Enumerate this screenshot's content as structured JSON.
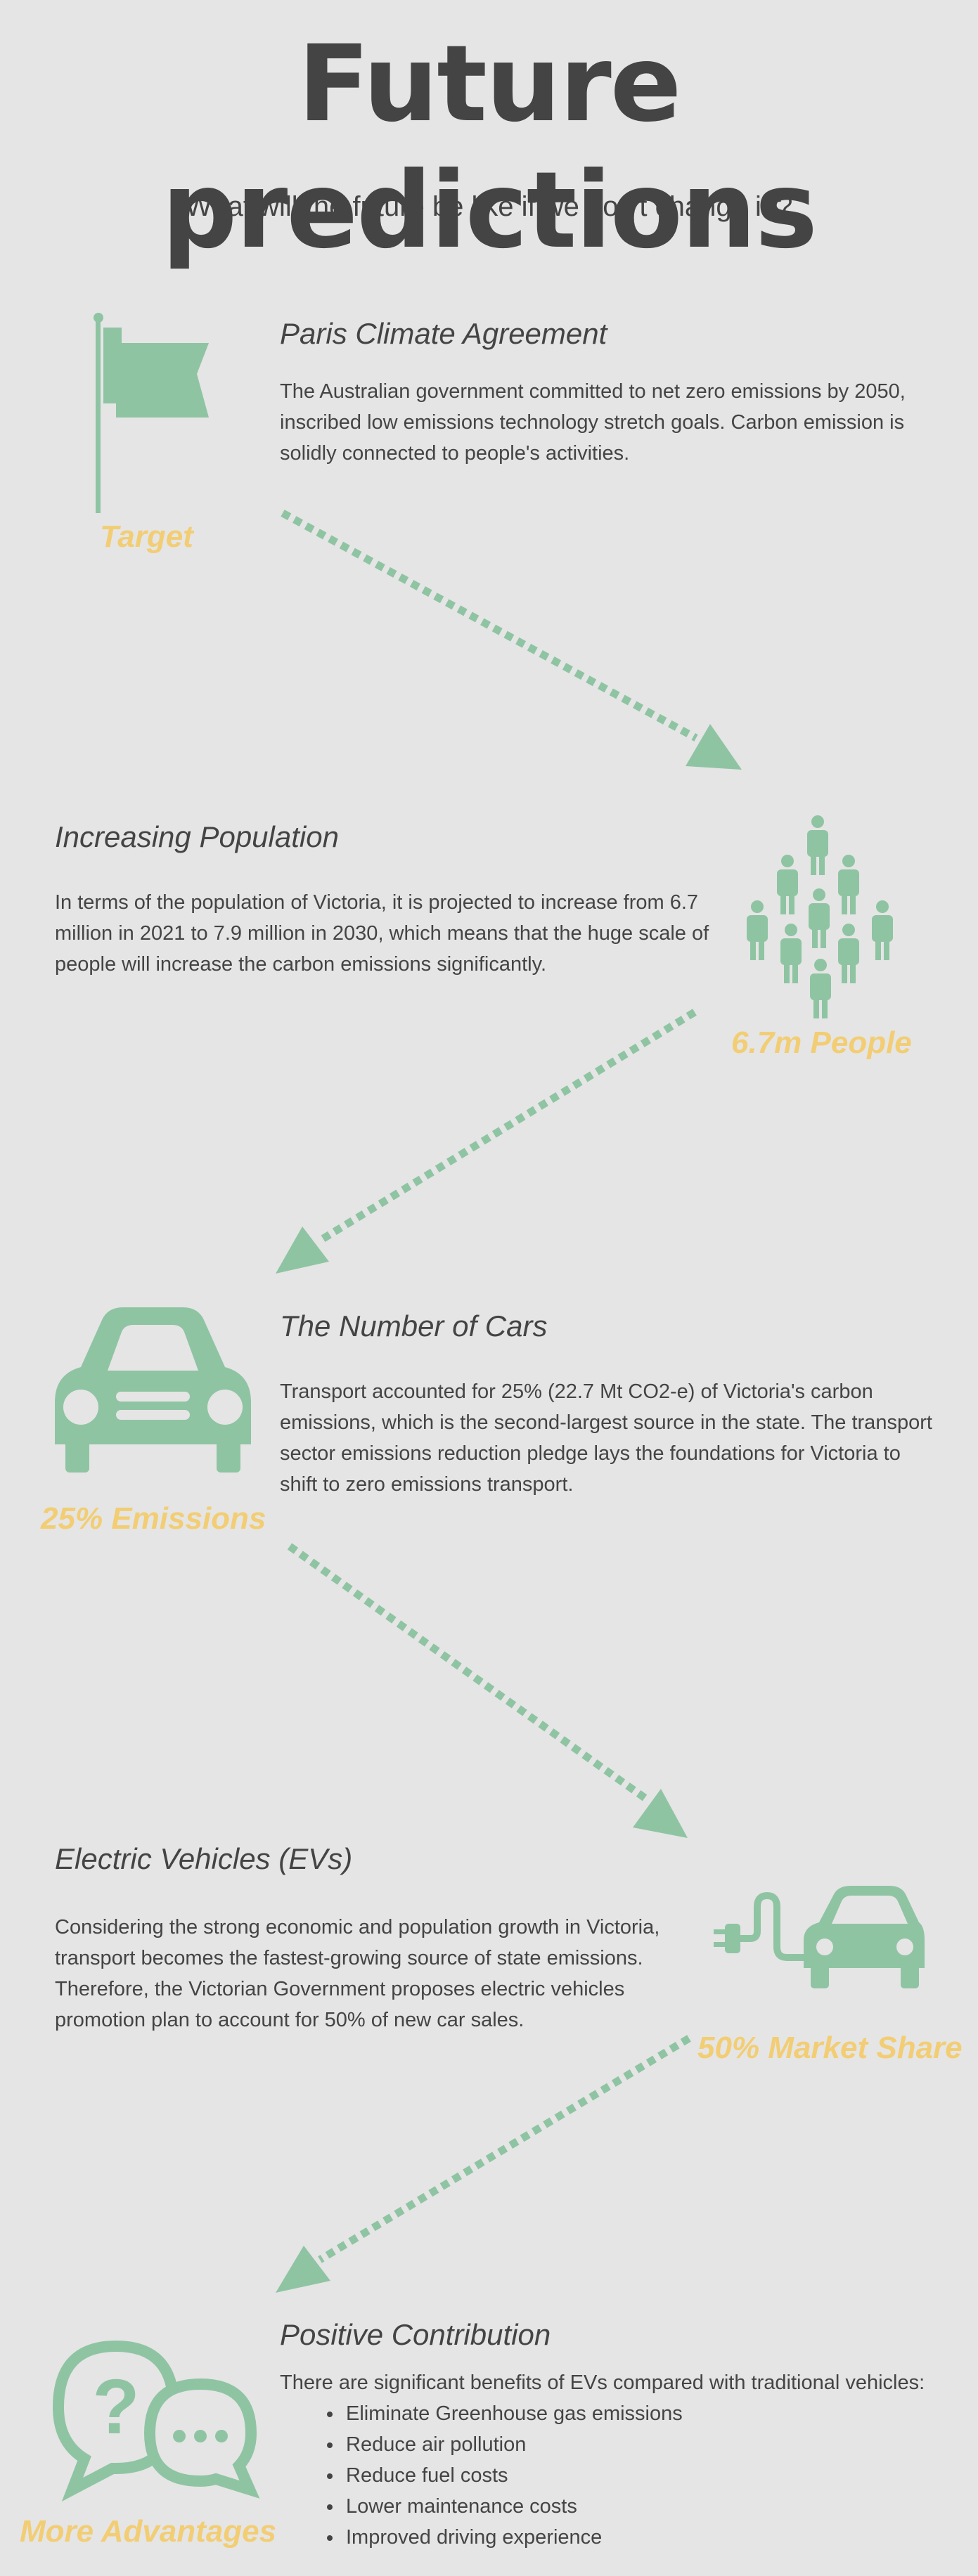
{
  "page": {
    "title": "Future predictions",
    "subtitle": "What will the future be like if we don't change it ?"
  },
  "colors": {
    "background": "#e5e5e5",
    "icon_green": "#8fc4a3",
    "caption_yellow": "#f2cd73",
    "text": "#444444"
  },
  "sections": {
    "paris": {
      "heading": "Paris Climate Agreement",
      "body": "The Australian government committed to net zero emissions by 2050, inscribed low emissions technology stretch goals. Carbon emission is solidly connected to people's activities.",
      "caption": "Target",
      "icon": "flag-icon"
    },
    "population": {
      "heading": "Increasing Population",
      "body": "In terms of the population of Victoria, it is projected to increase from 6.7 million in 2021 to 7.9 million in 2030, which means that the huge scale of people will increase the carbon emissions significantly.",
      "caption": "6.7m People",
      "icon": "people-group-icon"
    },
    "cars": {
      "heading": "The Number of Cars",
      "body": "Transport accounted for 25% (22.7 Mt CO2-e) of Victoria's carbon emissions, which is the second-largest source in the state. The transport sector emissions reduction pledge lays the foundations for Victoria to shift to zero emissions transport.",
      "caption": "25% Emissions",
      "icon": "car-icon"
    },
    "evs": {
      "heading": "Electric Vehicles (EVs)",
      "body": "Considering the strong economic and population growth in Victoria, transport becomes the fastest-growing source of state emissions. Therefore, the Victorian Government proposes electric vehicles promotion plan to account for 50% of new car sales.",
      "caption": "50% Market Share",
      "icon": "electric-car-icon"
    },
    "positive": {
      "heading": "Positive Contribution",
      "intro": "There are significant benefits of EVs compared with traditional vehicles:",
      "items": [
        "Eliminate Greenhouse gas emissions",
        "Reduce air pollution",
        "Reduce fuel costs",
        "Lower maintenance costs",
        "Improved driving experience"
      ],
      "caption": "More Advantages",
      "icon": "question-chat-icon"
    }
  }
}
